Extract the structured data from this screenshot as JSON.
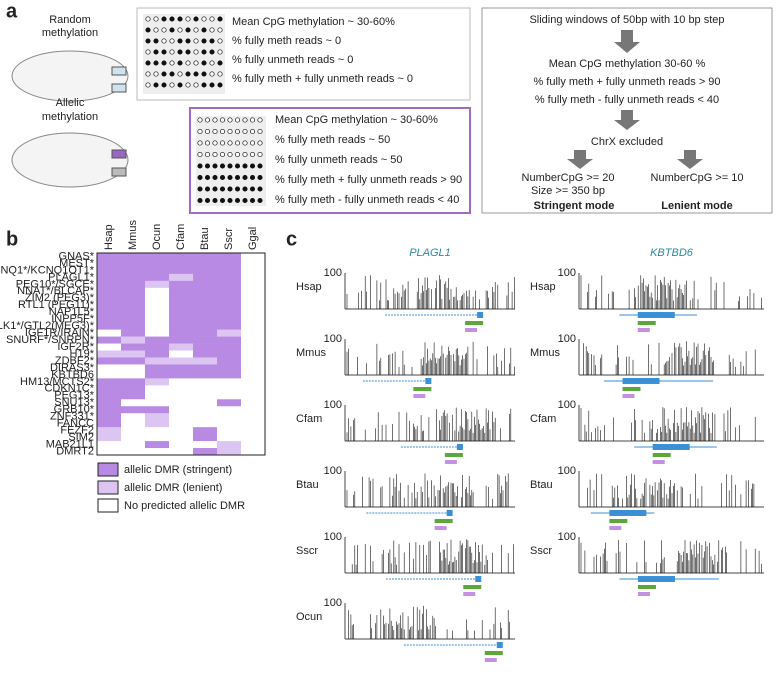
{
  "panel_a": {
    "label": "a",
    "random_label": [
      "Random",
      "methylation"
    ],
    "allelic_label": [
      "Allelic",
      "methylation"
    ],
    "random_box": [
      "Mean CpG methylation ~ 30-60%",
      "% fully meth reads ~ 0",
      "% fully unmeth reads ~ 0",
      "% fully meth + fully unmeth reads ~ 0"
    ],
    "allelic_box": [
      "Mean CpG methylation ~ 30-60%",
      "% fully meth reads ~ 50",
      "% fully unmeth reads ~ 50",
      "% fully meth + fully unmeth reads > 90",
      "% fully meth - fully unmeth reads < 40"
    ],
    "pipeline": {
      "step1": "Sliding windows of 50bp with 10 bp step",
      "criteria": [
        "Mean CpG methylation 30-60 %",
        "% fully meth + fully unmeth reads > 90",
        "% fully meth - fully unmeth reads < 40"
      ],
      "step3": "ChrX excluded",
      "stringent": [
        "NumberCpG >= 20",
        "Size >= 350 bp"
      ],
      "lenient": [
        "NumberCpG >= 10"
      ],
      "stringent_title": "Stringent mode",
      "lenient_title": "Lenient mode"
    }
  },
  "panel_b": {
    "label": "b",
    "columns": [
      "Hsap",
      "Mmus",
      "Ocun",
      "Cfam",
      "Btau",
      "Sscr",
      "Ggal"
    ],
    "rows": [
      "GNAS*",
      "MEST*",
      "KCNQ1*/KCNQ1OT1*",
      "PLAGL1*",
      "PEG10*/SGCE*",
      "NNAT*/BLCAP*",
      "ZIM2 (PEG3)*",
      "RTL1 (PEG11)*",
      "NAP1L5*",
      "INPP5F*",
      "DLK1*/GTL2(MEG3)*",
      "IGF1R/IRAIN*",
      "SNURF*/SNRPN*",
      "IGF2R*",
      "H19*",
      "ZDBF2*",
      "DIRAS3*",
      "KBTBD6",
      "HM13/MCTS2*",
      "CDKN1C*",
      "PEG13*",
      "SNU13*",
      "GRB10*",
      "ZNF331*",
      "FANCC",
      "FEZF2",
      "SIM2",
      "MAB21L1",
      "DMRT2"
    ],
    "cells": [
      [
        0,
        0,
        0,
        0,
        0,
        0,
        2
      ],
      [
        0,
        0,
        0,
        0,
        0,
        0,
        2
      ],
      [
        0,
        0,
        0,
        0,
        0,
        0,
        2
      ],
      [
        0,
        0,
        0,
        1,
        0,
        0,
        2
      ],
      [
        0,
        0,
        1,
        0,
        0,
        0,
        2
      ],
      [
        0,
        0,
        2,
        0,
        0,
        0,
        2
      ],
      [
        0,
        0,
        2,
        0,
        0,
        0,
        2
      ],
      [
        0,
        0,
        2,
        0,
        0,
        0,
        2
      ],
      [
        0,
        0,
        2,
        0,
        0,
        0,
        2
      ],
      [
        0,
        0,
        2,
        0,
        0,
        0,
        2
      ],
      [
        0,
        0,
        2,
        0,
        0,
        0,
        2
      ],
      [
        2,
        0,
        2,
        0,
        0,
        1,
        2
      ],
      [
        0,
        1,
        0,
        0,
        0,
        0,
        2
      ],
      [
        2,
        0,
        0,
        1,
        0,
        0,
        2
      ],
      [
        1,
        1,
        0,
        2,
        0,
        0,
        2
      ],
      [
        0,
        0,
        1,
        1,
        1,
        0,
        2
      ],
      [
        2,
        2,
        0,
        0,
        0,
        0,
        2
      ],
      [
        2,
        2,
        0,
        0,
        0,
        0,
        2
      ],
      [
        0,
        0,
        1,
        2,
        2,
        2,
        2
      ],
      [
        0,
        0,
        2,
        2,
        2,
        2,
        2
      ],
      [
        0,
        0,
        2,
        2,
        2,
        2,
        2
      ],
      [
        0,
        2,
        2,
        2,
        2,
        0,
        2
      ],
      [
        0,
        0,
        0,
        2,
        2,
        2,
        2
      ],
      [
        0,
        2,
        1,
        2,
        2,
        2,
        2
      ],
      [
        0,
        2,
        1,
        2,
        2,
        2,
        2
      ],
      [
        1,
        2,
        2,
        2,
        0,
        2,
        2
      ],
      [
        1,
        2,
        2,
        2,
        0,
        2,
        2
      ],
      [
        2,
        2,
        0,
        2,
        2,
        1,
        2
      ],
      [
        2,
        2,
        2,
        2,
        0,
        1,
        2
      ]
    ],
    "legend": [
      {
        "label": "allelic DMR (stringent)",
        "color": "#b98ae4"
      },
      {
        "label": "allelic DMR (lenient)",
        "color": "#dcc6f1"
      },
      {
        "label": "No predicted allelic DMR",
        "color": "#ffffff"
      }
    ]
  },
  "panel_c": {
    "label": "c",
    "genes": [
      "PLAGL1",
      "KBTBD6"
    ],
    "species": [
      [
        "Hsap",
        "Mmus",
        "Cfam",
        "Btau",
        "Sscr",
        "Ocun"
      ],
      [
        "Hsap",
        "Mmus",
        "Cfam",
        "Btau",
        "Sscr"
      ]
    ],
    "axis_max": "100"
  }
}
